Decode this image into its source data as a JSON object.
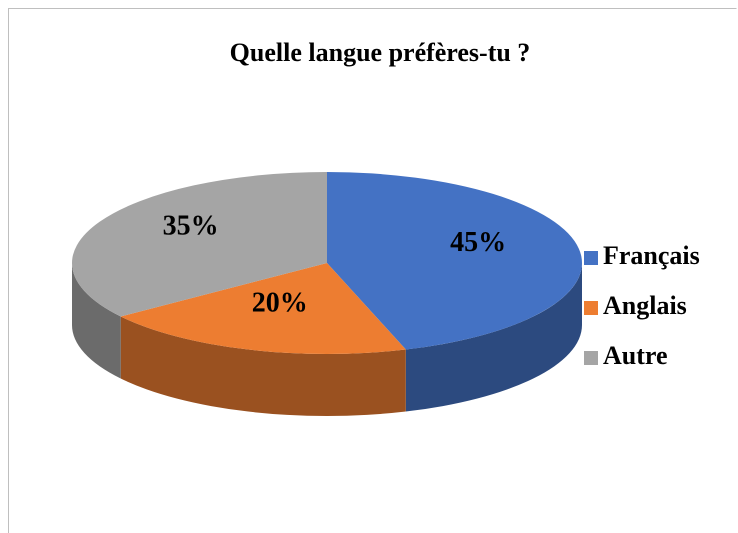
{
  "chart_data": {
    "type": "pie",
    "title": "Quelle langue préfères-tu ?",
    "categories": [
      "Français",
      "Anglais",
      "Autre"
    ],
    "values": [
      45,
      20,
      35
    ],
    "value_labels": [
      "45%",
      "20%",
      "35%"
    ],
    "colors": [
      "#4472c4",
      "#ed7d31",
      "#a5a5a5"
    ],
    "legend": "right"
  }
}
